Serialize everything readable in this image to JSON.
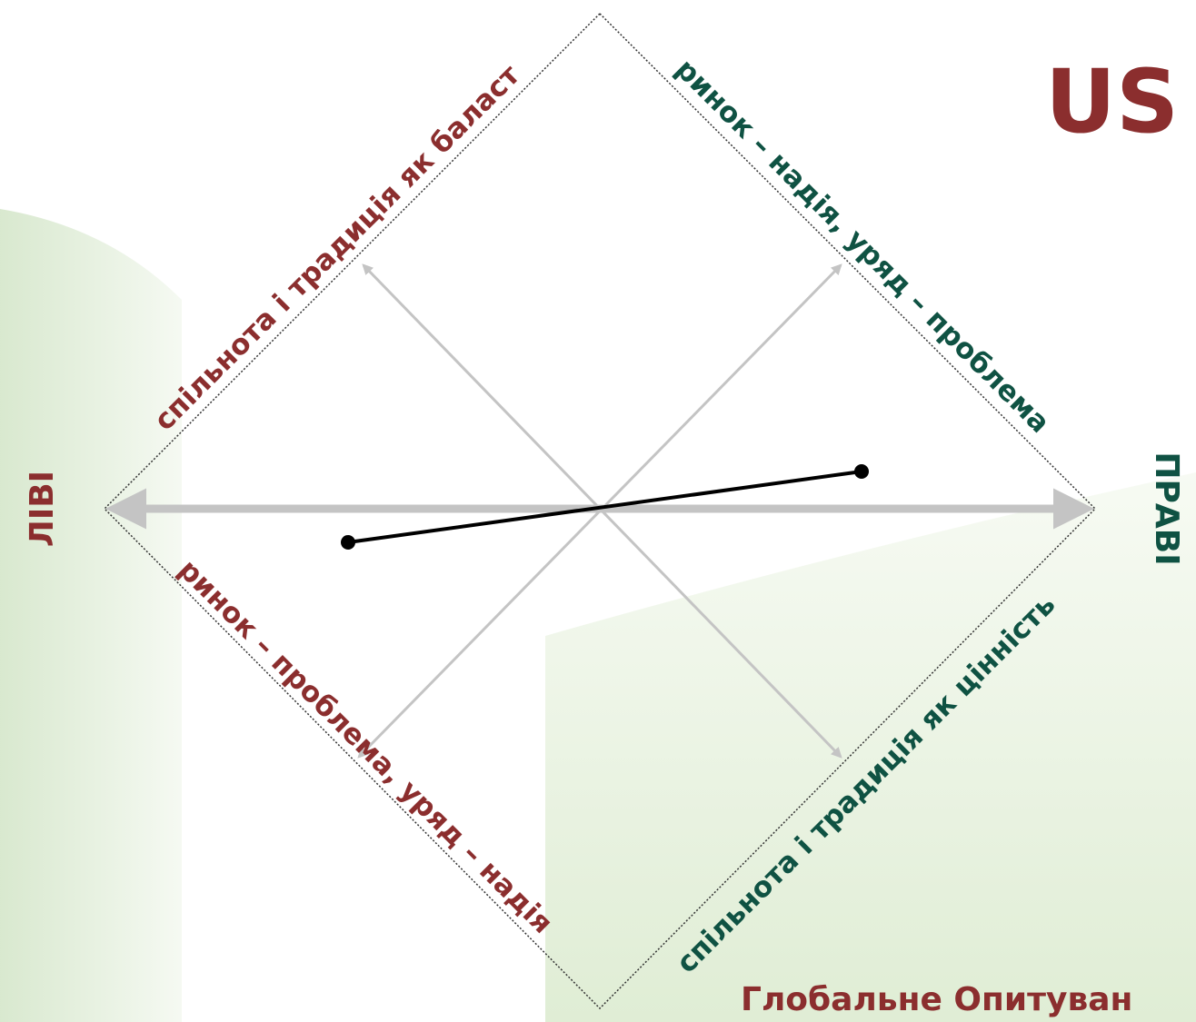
{
  "title": "US",
  "left_label": "ЛІВІ",
  "right_label": "ПРАВІ",
  "edges": {
    "top_left": "спільнота і традиція як баласт",
    "top_right": "ринок – надія, уряд – проблема",
    "bottom_left": "ринок – проблема, уряд – надія",
    "bottom_right": "спільнота і традиція як цінність"
  },
  "footer": "Глобальне Опитуван"
}
